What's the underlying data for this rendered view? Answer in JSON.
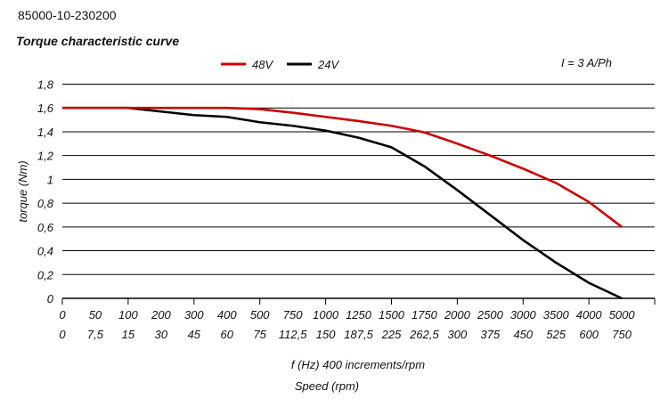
{
  "header": {
    "code": "85000-10-230200",
    "title": "Torque characteristic curve"
  },
  "chart_data": {
    "type": "line",
    "title": "Torque characteristic curve",
    "annotation": "I = 3 A/Ph",
    "ylabel": "torque (Nm)",
    "xlabel": "f (Hz) 400 increments/rpm",
    "xlabel2": "Speed (rpm)",
    "ylim": [
      0,
      1.8
    ],
    "yticks": [
      "0",
      "0,2",
      "0,4",
      "0,6",
      "0,8",
      "1",
      "1,2",
      "1,4",
      "1,6",
      "1,8"
    ],
    "categories": [
      "0",
      "50",
      "100",
      "200",
      "300",
      "400",
      "500",
      "750",
      "1000",
      "1250",
      "1500",
      "1750",
      "2000",
      "2500",
      "3000",
      "3500",
      "4000",
      "5000"
    ],
    "categories_rpm": [
      "0",
      "7,5",
      "15",
      "30",
      "45",
      "60",
      "75",
      "112,5",
      "150",
      "187,5",
      "225",
      "262,5",
      "300",
      "375",
      "450",
      "525",
      "600",
      "750"
    ],
    "grid": true,
    "legend_position": "top",
    "series": [
      {
        "name": "48V",
        "color": "#cc0000",
        "values": [
          1.6,
          1.6,
          1.6,
          1.6,
          1.6,
          1.6,
          1.59,
          1.56,
          1.525,
          1.49,
          1.45,
          1.395,
          1.3,
          1.2,
          1.09,
          0.97,
          0.81,
          0.6
        ]
      },
      {
        "name": "24V",
        "color": "#000000",
        "values": [
          1.6,
          1.6,
          1.6,
          1.57,
          1.54,
          1.525,
          1.48,
          1.45,
          1.41,
          1.35,
          1.27,
          1.11,
          0.91,
          0.7,
          0.49,
          0.3,
          0.13,
          0.0
        ]
      }
    ]
  }
}
